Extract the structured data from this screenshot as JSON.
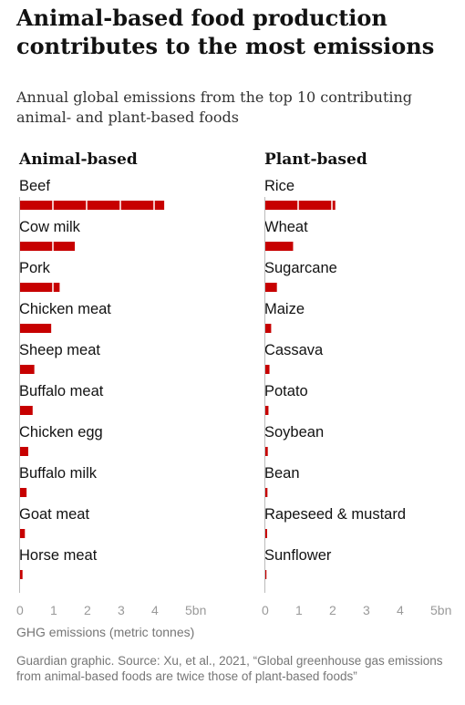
{
  "header": {
    "title": "Animal-based food production contributes to the most emissions",
    "subtitle": "Annual global emissions from the top 10 contributing animal- and plant-based foods"
  },
  "footer": {
    "xlabel": "GHG emissions (metric tonnes)",
    "source": "Guardian graphic. Source: Xu, et al., 2021, “Global greenhouse gas emissions from animal-based foods are twice those of plant-based foods”"
  },
  "colors": {
    "bar": "#c70000",
    "text": "#121212",
    "axis": "#bbbbbb",
    "muted": "#767676"
  },
  "chart_data": [
    {
      "type": "bar",
      "title": "Animal-based",
      "categories": [
        "Beef",
        "Cow milk",
        "Pork",
        "Chicken meat",
        "Sheep meat",
        "Buffalo meat",
        "Chicken egg",
        "Buffalo milk",
        "Goat meat",
        "Horse meat"
      ],
      "values": [
        4.3,
        1.65,
        1.2,
        0.95,
        0.45,
        0.4,
        0.27,
        0.22,
        0.17,
        0.1
      ],
      "xlim": [
        0,
        5
      ],
      "xticks": [
        "0",
        "1",
        "2",
        "3",
        "4",
        "5bn"
      ],
      "grid": false
    },
    {
      "type": "bar",
      "title": "Plant-based",
      "categories": [
        "Rice",
        "Wheat",
        "Sugarcane",
        "Maize",
        "Cassava",
        "Potato",
        "Soybean",
        "Bean",
        "Rapeseed & mustard",
        "Sunflower"
      ],
      "values": [
        2.1,
        0.85,
        0.37,
        0.2,
        0.15,
        0.12,
        0.1,
        0.09,
        0.08,
        0.06
      ],
      "xlim": [
        0,
        5
      ],
      "xticks": [
        "0",
        "1",
        "2",
        "3",
        "4",
        "5bn"
      ],
      "grid": false
    }
  ]
}
